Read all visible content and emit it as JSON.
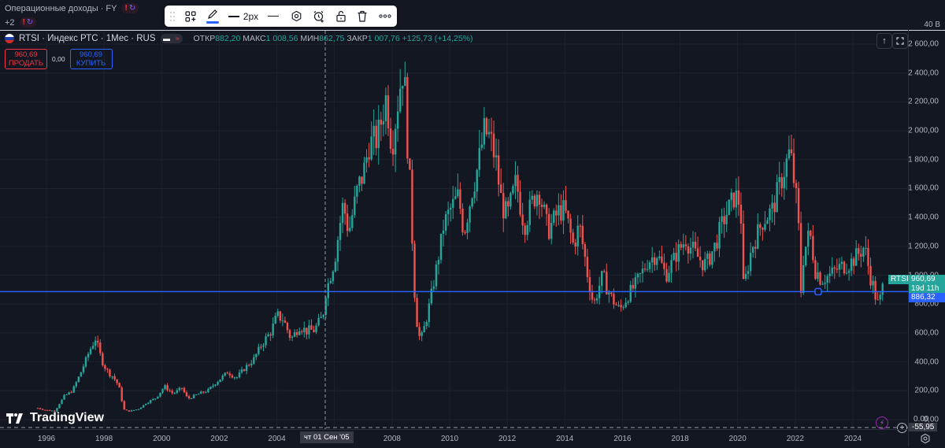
{
  "indicators": {
    "line1_label": "Операционные доходы · FY",
    "line2_label": "+2",
    "warn_icon": "!",
    "sync_icon": "↻"
  },
  "drawing_toolbar": {
    "items": [
      "drag-handle",
      "templates",
      "pencil-color",
      "line-width",
      "line-style",
      "settings",
      "alert",
      "lock",
      "delete",
      "more"
    ],
    "line_width_label": "2px",
    "accent": "#2962ff"
  },
  "pane": {
    "label": "40 B"
  },
  "symbol": {
    "title": "RTSI · Индекс РТС · 1Мес · RUS",
    "ohlc": {
      "open_label": "ОТКР",
      "open": "882,20",
      "high_label": "МАКС",
      "high": "1 008,56",
      "low_label": "МИН",
      "low": "862,75",
      "close_label": "ЗАКР",
      "close": "1 007,76",
      "change": "+125,73 (+14,25%)"
    }
  },
  "trade": {
    "sell_price": "960,69",
    "sell_label": "ПРОДАТЬ",
    "spread": "0,00",
    "buy_price": "960,69",
    "buy_label": "КУПИТЬ"
  },
  "price_scale": {
    "labels": [
      "2 600,00",
      "2 400,00",
      "2 200,00",
      "2 000,00",
      "1 800,00",
      "1 600,00",
      "1 400,00",
      "1 200,00",
      "1 000,00",
      "800,00",
      "600,00",
      "400,00",
      "200,00",
      "0,00"
    ],
    "symbol_tag": "RTSI",
    "last_price": "960,69",
    "countdown": "19d 11h",
    "hline_price": "886,32",
    "lower_value": "0.00",
    "lower_last": "-55,95"
  },
  "time_scale": {
    "labels": [
      "1996",
      "1998",
      "2000",
      "2002",
      "2004",
      "2008",
      "2010",
      "2012",
      "2014",
      "2016",
      "2018",
      "2020",
      "2022",
      "2024"
    ],
    "crosshair_label": "чт 01 Сен '05"
  },
  "brand": {
    "name": "TradingView"
  },
  "colors": {
    "up": "#26a69a",
    "down": "#ef5350",
    "hline": "#2962ff",
    "bg": "#131722",
    "grid": "#1e222d"
  },
  "chart_data": {
    "type": "candlestick",
    "title": "RTSI · Индекс РТС · 1Мес",
    "xlabel": "",
    "ylabel": "",
    "ylim": [
      -60,
      2650
    ],
    "x_range": [
      "1995-09",
      "2025-01"
    ],
    "horizontal_line": 886.32,
    "last_price": 960.69,
    "yearly_close_approx": {
      "1995": 82,
      "1996": 200,
      "1997": 396,
      "1998": 59,
      "1999": 175,
      "2000": 143,
      "2001": 260,
      "2002": 359,
      "2003": 567,
      "2004": 614,
      "2005": 1125,
      "2006": 1922,
      "2007": 2290,
      "2008": 632,
      "2009": 1444,
      "2010": 1770,
      "2011": 1382,
      "2012": 1527,
      "2013": 1443,
      "2014": 791,
      "2015": 757,
      "2016": 1152,
      "2017": 1154,
      "2018": 1069,
      "2019": 1549,
      "2020": 1387,
      "2021": 1596,
      "2022": 971,
      "2023": 1083,
      "2024": 893,
      "2025": 960
    },
    "points": [
      [
        1995.7,
        80
      ],
      [
        1996.0,
        65
      ],
      [
        1996.3,
        60
      ],
      [
        1996.6,
        160
      ],
      [
        1996.9,
        200
      ],
      [
        1997.2,
        330
      ],
      [
        1997.5,
        480
      ],
      [
        1997.7,
        560
      ],
      [
        1997.9,
        420
      ],
      [
        1998.1,
        340
      ],
      [
        1998.3,
        300
      ],
      [
        1998.5,
        240
      ],
      [
        1998.7,
        65
      ],
      [
        1998.9,
        59
      ],
      [
        1999.2,
        75
      ],
      [
        1999.5,
        120
      ],
      [
        1999.8,
        150
      ],
      [
        2000.1,
        230
      ],
      [
        2000.4,
        180
      ],
      [
        2000.7,
        220
      ],
      [
        2000.9,
        143
      ],
      [
        2001.3,
        180
      ],
      [
        2001.6,
        200
      ],
      [
        2001.9,
        260
      ],
      [
        2002.3,
        330
      ],
      [
        2002.6,
        290
      ],
      [
        2002.9,
        359
      ],
      [
        2003.2,
        420
      ],
      [
        2003.5,
        530
      ],
      [
        2003.8,
        610
      ],
      [
        2004.0,
        720
      ],
      [
        2004.2,
        700
      ],
      [
        2004.5,
        560
      ],
      [
        2004.8,
        650
      ],
      [
        2005.0,
        614
      ],
      [
        2005.3,
        620
      ],
      [
        2005.6,
        720
      ],
      [
        2005.7,
        880
      ],
      [
        2006.0,
        1100
      ],
      [
        2006.3,
        1500
      ],
      [
        2006.5,
        1300
      ],
      [
        2006.8,
        1600
      ],
      [
        2007.0,
        1700
      ],
      [
        2007.2,
        1900
      ],
      [
        2007.5,
        1950
      ],
      [
        2007.8,
        2240
      ],
      [
        2008.0,
        1900
      ],
      [
        2008.3,
        2340
      ],
      [
        2008.4,
        2450
      ],
      [
        2008.6,
        1700
      ],
      [
        2008.8,
        850
      ],
      [
        2008.9,
        600
      ],
      [
        2009.0,
        550
      ],
      [
        2009.2,
        700
      ],
      [
        2009.5,
        1000
      ],
      [
        2009.8,
        1350
      ],
      [
        2010.0,
        1444
      ],
      [
        2010.3,
        1550
      ],
      [
        2010.5,
        1300
      ],
      [
        2010.8,
        1600
      ],
      [
        2011.0,
        1770
      ],
      [
        2011.2,
        2000
      ],
      [
        2011.4,
        1950
      ],
      [
        2011.6,
        1800
      ],
      [
        2011.8,
        1500
      ],
      [
        2012.0,
        1400
      ],
      [
        2012.3,
        1650
      ],
      [
        2012.6,
        1350
      ],
      [
        2012.9,
        1527
      ],
      [
        2013.1,
        1600
      ],
      [
        2013.4,
        1300
      ],
      [
        2013.8,
        1450
      ],
      [
        2014.0,
        1443
      ],
      [
        2014.3,
        1200
      ],
      [
        2014.5,
        1350
      ],
      [
        2014.8,
        1000
      ],
      [
        2015.0,
        791
      ],
      [
        2015.3,
        1000
      ],
      [
        2015.6,
        850
      ],
      [
        2015.9,
        757
      ],
      [
        2016.2,
        860
      ],
      [
        2016.5,
        950
      ],
      [
        2016.9,
        1100
      ],
      [
        2017.2,
        1150
      ],
      [
        2017.5,
        1000
      ],
      [
        2017.9,
        1154
      ],
      [
        2018.2,
        1250
      ],
      [
        2018.5,
        1150
      ],
      [
        2018.9,
        1069
      ],
      [
        2019.2,
        1200
      ],
      [
        2019.5,
        1380
      ],
      [
        2019.9,
        1549
      ],
      [
        2020.1,
        1500
      ],
      [
        2020.2,
        900
      ],
      [
        2020.5,
        1200
      ],
      [
        2020.9,
        1387
      ],
      [
        2021.2,
        1450
      ],
      [
        2021.5,
        1650
      ],
      [
        2021.8,
        1850
      ],
      [
        2021.9,
        1750
      ],
      [
        2022.1,
        1400
      ],
      [
        2022.2,
        900
      ],
      [
        2022.3,
        1150
      ],
      [
        2022.5,
        1300
      ],
      [
        2022.7,
        1050
      ],
      [
        2022.9,
        971
      ],
      [
        2023.2,
        1000
      ],
      [
        2023.5,
        1050
      ],
      [
        2023.9,
        1083
      ],
      [
        2024.2,
        1150
      ],
      [
        2024.4,
        1200
      ],
      [
        2024.6,
        1000
      ],
      [
        2024.8,
        850
      ],
      [
        2024.9,
        780
      ],
      [
        2025.0,
        893
      ],
      [
        2025.1,
        960
      ]
    ]
  }
}
